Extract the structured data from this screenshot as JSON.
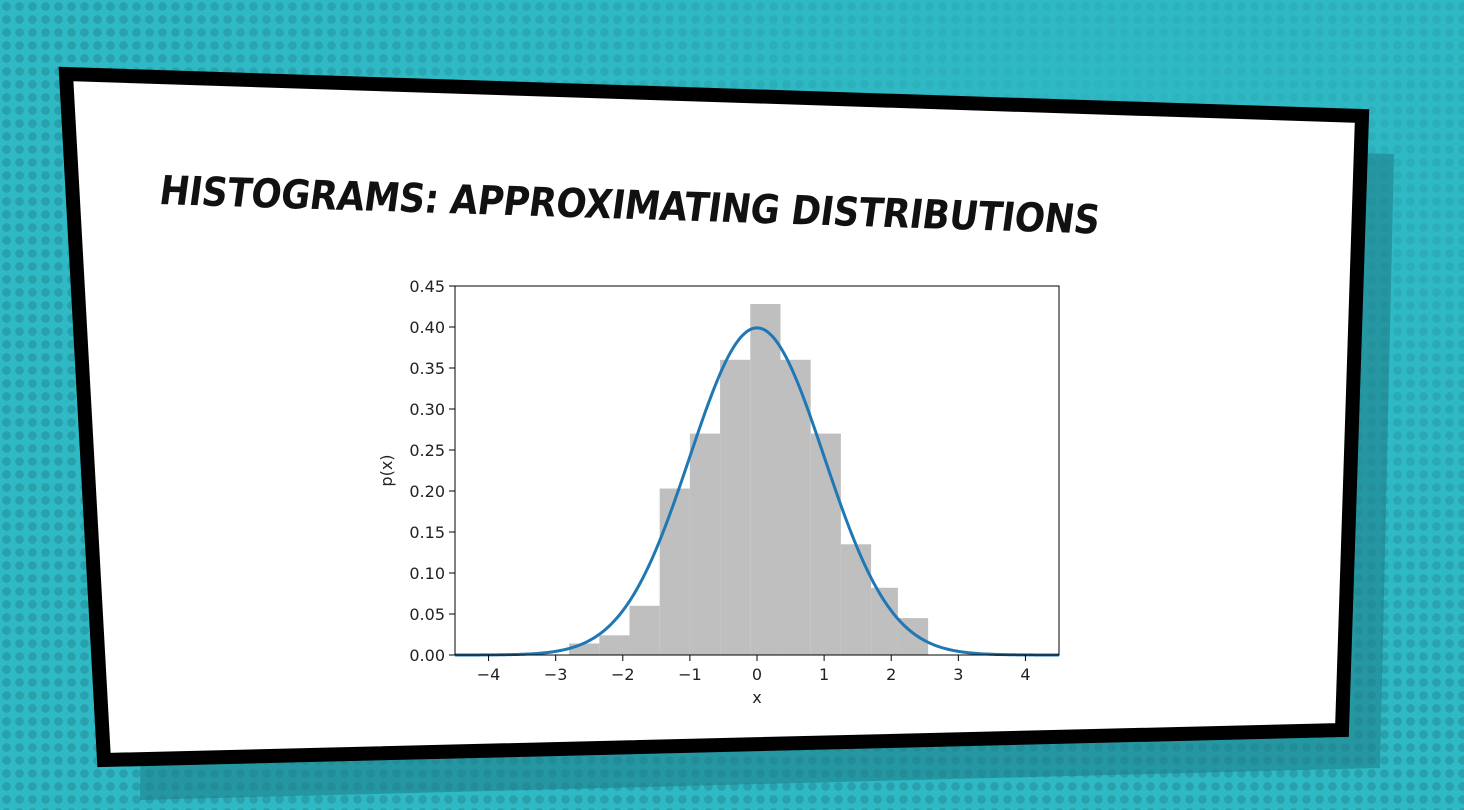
{
  "slide": {
    "title": "HISTOGRAMS: APPROXIMATING DISTRIBUTIONS"
  },
  "colors": {
    "background": "#2fb9c4",
    "dots": "#28a1ad",
    "panel": "#ffffff",
    "panel_border": "#000000",
    "bar_fill": "#bfbfbf",
    "curve": "#1f77b4"
  },
  "chart_data": {
    "type": "bar",
    "title": "",
    "xlabel": "x",
    "ylabel": "p(x)",
    "xlim": [
      -4.5,
      4.5
    ],
    "ylim": [
      0,
      0.45
    ],
    "xticks": [
      "−4",
      "−3",
      "−2",
      "−1",
      "0",
      "1",
      "2",
      "3",
      "4"
    ],
    "xtick_values": [
      -4,
      -3,
      -2,
      -1,
      0,
      1,
      2,
      3,
      4
    ],
    "yticks": [
      "0.00",
      "0.05",
      "0.10",
      "0.15",
      "0.20",
      "0.25",
      "0.30",
      "0.35",
      "0.40",
      "0.45"
    ],
    "ytick_values": [
      0,
      0.05,
      0.1,
      0.15,
      0.2,
      0.25,
      0.3,
      0.35,
      0.4,
      0.45
    ],
    "grid": false,
    "histogram": {
      "bin_edges": [
        -2.8,
        -2.35,
        -1.9,
        -1.45,
        -1.0,
        -0.55,
        -0.1,
        0.35,
        0.8,
        1.25,
        1.7,
        2.1,
        2.55
      ],
      "values": [
        0.014,
        0.024,
        0.06,
        0.203,
        0.27,
        0.36,
        0.428,
        0.36,
        0.27,
        0.135,
        0.082,
        0.045
      ]
    },
    "series": [
      {
        "type": "line",
        "function": "normal_pdf",
        "mean": 0,
        "std": 1
      }
    ]
  }
}
